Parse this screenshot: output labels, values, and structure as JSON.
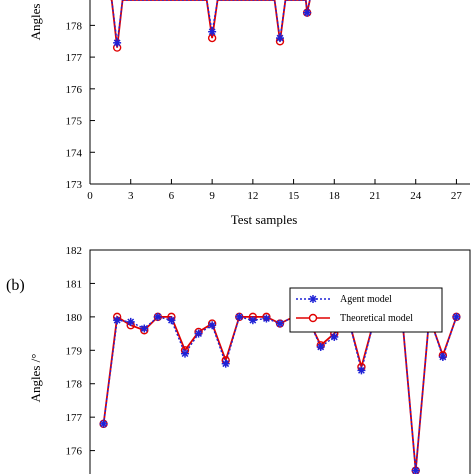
{
  "colors": {
    "agent": "#1f22d6",
    "theoretical": "#e00000",
    "axis": "#000000",
    "background": "#ffffff"
  },
  "chart_data": [
    {
      "panel": "a",
      "panel_label": "",
      "type": "line",
      "xlabel": "Test samples",
      "ylabel": "Angles",
      "xlim": [
        0,
        28
      ],
      "ylim": [
        173,
        178.8
      ],
      "xticks": [
        0,
        3,
        6,
        9,
        12,
        15,
        18,
        21,
        24,
        27
      ],
      "yticks": [
        173,
        174,
        175,
        176,
        177,
        178
      ],
      "legend": null,
      "grid": false,
      "series": [
        {
          "name": "",
          "marker": "star",
          "color_key": "agent",
          "dashed": true,
          "points": [
            [
              1,
              179
            ],
            [
              1.6,
              178.8
            ],
            [
              2,
              177.45
            ],
            [
              2.4,
              178.8
            ],
            [
              8.6,
              178.8
            ],
            [
              9,
              177.8
            ],
            [
              9.4,
              178.8
            ],
            [
              13.6,
              178.8
            ],
            [
              14,
              177.6
            ],
            [
              14.4,
              178.8
            ],
            [
              15.9,
              178.8
            ],
            [
              16,
              178.4
            ],
            [
              16.2,
              178.8
            ]
          ]
        },
        {
          "name": "",
          "marker": "circle",
          "color_key": "theoretical",
          "dashed": false,
          "points": [
            [
              1,
              179
            ],
            [
              1.6,
              178.8
            ],
            [
              2,
              177.3
            ],
            [
              2.4,
              178.8
            ],
            [
              8.6,
              178.8
            ],
            [
              9,
              177.6
            ],
            [
              9.4,
              178.8
            ],
            [
              13.6,
              178.8
            ],
            [
              14,
              177.5
            ],
            [
              14.4,
              178.8
            ],
            [
              15.9,
              178.8
            ],
            [
              16,
              178.4
            ],
            [
              16.2,
              178.8
            ]
          ]
        }
      ]
    },
    {
      "panel": "b",
      "panel_label": "(b)",
      "type": "line",
      "xlabel": "",
      "ylabel": "Angles /°",
      "xlim": [
        0,
        28
      ],
      "ylim": [
        175.3,
        182
      ],
      "xticks": [],
      "yticks": [
        176,
        177,
        178,
        179,
        180,
        181,
        182
      ],
      "legend": "top-right",
      "grid": false,
      "series": [
        {
          "name": "Agent model",
          "marker": "star",
          "color_key": "agent",
          "dashed": true,
          "points": [
            [
              1,
              176.8
            ],
            [
              2,
              179.9
            ],
            [
              3,
              179.85
            ],
            [
              4,
              179.65
            ],
            [
              5,
              180.0
            ],
            [
              6,
              179.9
            ],
            [
              7,
              178.9
            ],
            [
              8,
              179.5
            ],
            [
              9,
              179.75
            ],
            [
              10,
              178.6
            ],
            [
              11,
              180.0
            ],
            [
              12,
              179.9
            ],
            [
              13,
              179.95
            ],
            [
              14,
              179.8
            ],
            [
              15,
              180.0
            ],
            [
              16,
              180.0
            ],
            [
              17,
              179.1
            ],
            [
              18,
              179.4
            ],
            [
              19,
              180.0
            ],
            [
              20,
              178.4
            ],
            [
              21,
              180.0
            ],
            [
              22,
              180.0
            ],
            [
              23,
              180.0
            ],
            [
              24,
              175.4
            ],
            [
              25,
              180.0
            ],
            [
              26,
              178.8
            ],
            [
              27,
              180.0
            ]
          ]
        },
        {
          "name": "Theoretical model",
          "marker": "circle",
          "color_key": "theoretical",
          "dashed": false,
          "points": [
            [
              1,
              176.8
            ],
            [
              2,
              180.0
            ],
            [
              3,
              179.75
            ],
            [
              4,
              179.6
            ],
            [
              5,
              180.0
            ],
            [
              6,
              180.0
            ],
            [
              7,
              179.0
            ],
            [
              8,
              179.55
            ],
            [
              9,
              179.8
            ],
            [
              10,
              178.7
            ],
            [
              11,
              180.0
            ],
            [
              12,
              180.0
            ],
            [
              13,
              180.0
            ],
            [
              14,
              179.8
            ],
            [
              15,
              180.0
            ],
            [
              16,
              180.0
            ],
            [
              17,
              179.15
            ],
            [
              18,
              179.5
            ],
            [
              19,
              180.0
            ],
            [
              20,
              178.5
            ],
            [
              21,
              180.0
            ],
            [
              22,
              180.0
            ],
            [
              23,
              180.0
            ],
            [
              24,
              175.4
            ],
            [
              25,
              180.0
            ],
            [
              26,
              178.85
            ],
            [
              27,
              180.0
            ]
          ]
        }
      ]
    }
  ]
}
